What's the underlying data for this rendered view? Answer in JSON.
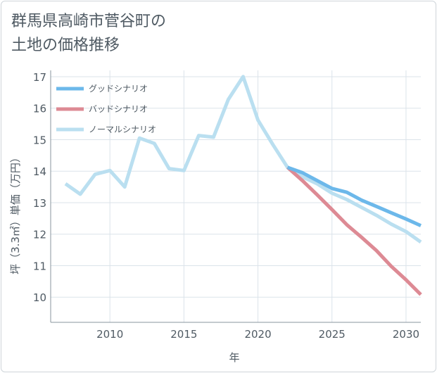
{
  "title_line1": "群馬県高崎市菅谷町の",
  "title_line2": "土地の価格推移",
  "chart_data": {
    "type": "line",
    "xlabel": "年",
    "ylabel": "坪（3.3㎡）単価（万円）",
    "xlim": [
      2006,
      2031
    ],
    "ylim": [
      9.2,
      17.2
    ],
    "xticks": [
      2010,
      2015,
      2020,
      2025,
      2030
    ],
    "yticks": [
      10,
      11,
      12,
      13,
      14,
      15,
      16,
      17
    ],
    "grid": true,
    "legend_position": "top-left",
    "series": [
      {
        "name": "グッドシナリオ",
        "color": "#6cb8ea",
        "x": [
          2022,
          2023,
          2024,
          2025,
          2026,
          2027,
          2028,
          2029,
          2030,
          2031
        ],
        "values": [
          14.12,
          13.95,
          13.7,
          13.45,
          13.33,
          13.08,
          12.88,
          12.68,
          12.48,
          12.27
        ]
      },
      {
        "name": "バッドシナリオ",
        "color": "#dd8a94",
        "x": [
          2022,
          2023,
          2024,
          2025,
          2026,
          2027,
          2028,
          2029,
          2030,
          2031
        ],
        "values": [
          14.12,
          13.7,
          13.25,
          12.78,
          12.3,
          11.9,
          11.48,
          10.98,
          10.55,
          10.08
        ]
      },
      {
        "name": "ノーマルシナリオ",
        "color": "#badff0",
        "x": [
          2007,
          2008,
          2009,
          2010,
          2011,
          2012,
          2013,
          2014,
          2015,
          2016,
          2017,
          2018,
          2019,
          2020,
          2021,
          2022,
          2023,
          2024,
          2025,
          2026,
          2027,
          2028,
          2029,
          2030,
          2031
        ],
        "values": [
          13.6,
          13.27,
          13.9,
          14.02,
          13.5,
          15.05,
          14.88,
          14.08,
          14.02,
          15.13,
          15.08,
          16.28,
          17.0,
          15.62,
          14.85,
          14.12,
          13.82,
          13.6,
          13.3,
          13.1,
          12.85,
          12.6,
          12.32,
          12.08,
          11.75
        ]
      }
    ]
  }
}
